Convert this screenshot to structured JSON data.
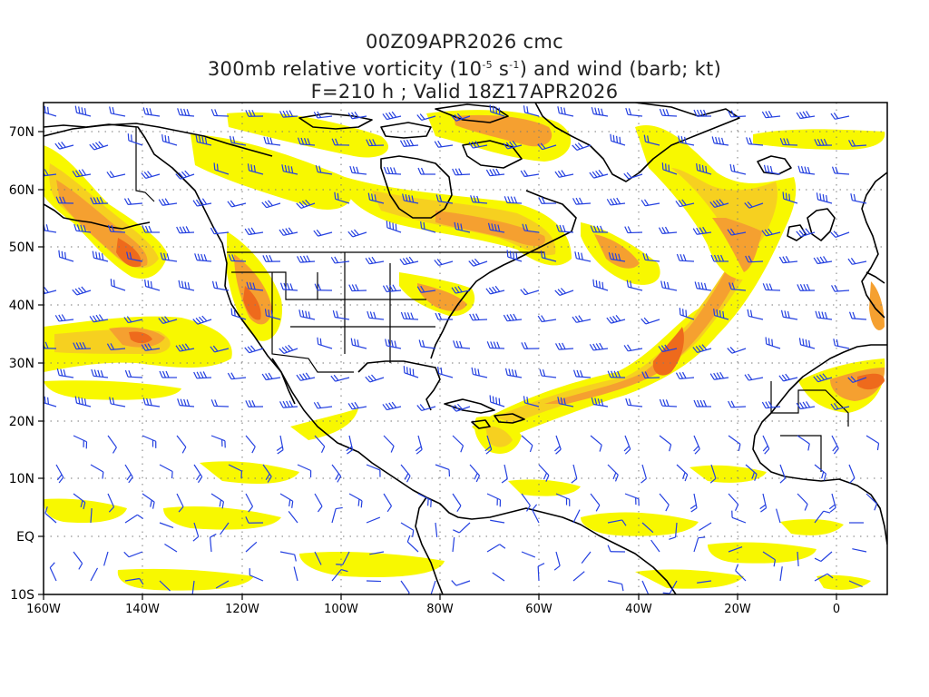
{
  "title": {
    "line1": "00Z09APR2026 cmc",
    "line2_pre": "300mb relative vorticity (10",
    "line2_exp1": "-5",
    "line2_mid": " s",
    "line2_exp2": "-1",
    "line2_post": ") and wind (barb; kt)",
    "line3": "F=210 h ; Valid 18Z17APR2026"
  },
  "axes": {
    "lon_labels": [
      "160W",
      "140W",
      "120W",
      "100W",
      "80W",
      "60W",
      "40W",
      "20W",
      "0"
    ],
    "lat_labels": [
      "70N",
      "60N",
      "50N",
      "40N",
      "30N",
      "20N",
      "10N",
      "EQ",
      "10S"
    ],
    "lon_range": [
      -160,
      10
    ],
    "lat_range": [
      -10,
      75
    ]
  },
  "colors": {
    "shade_light": "#f8f800",
    "shade_mid": "#f6d020",
    "shade_orange": "#f5a030",
    "shade_dark": "#ee6a1c",
    "shade_max": "#e0301e",
    "barb": "#2440e0",
    "coast": "#000000",
    "grid": "#7a7a7a"
  }
}
